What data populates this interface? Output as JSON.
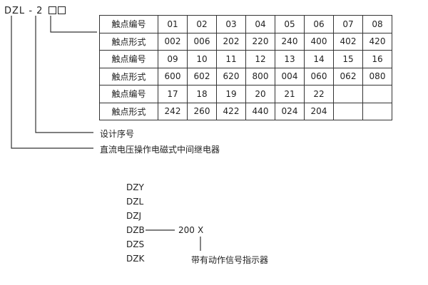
{
  "model": {
    "prefix": "DZL",
    "dash": "-",
    "series_digit": "2"
  },
  "table": {
    "rows": [
      {
        "label": "触点编号",
        "cells": [
          "01",
          "02",
          "03",
          "04",
          "05",
          "06",
          "07",
          "08"
        ]
      },
      {
        "label": "触点形式",
        "cells": [
          "002",
          "006",
          "202",
          "220",
          "240",
          "400",
          "402",
          "420"
        ]
      },
      {
        "label": "触点编号",
        "cells": [
          "09",
          "10",
          "11",
          "12",
          "13",
          "14",
          "15",
          "16"
        ]
      },
      {
        "label": "触点形式",
        "cells": [
          "600",
          "602",
          "620",
          "800",
          "004",
          "060",
          "062",
          "080"
        ]
      },
      {
        "label": "触点编号",
        "cells": [
          "17",
          "18",
          "19",
          "20",
          "21",
          "22",
          "",
          ""
        ]
      },
      {
        "label": "触点形式",
        "cells": [
          "242",
          "260",
          "422",
          "440",
          "024",
          "204",
          "",
          ""
        ]
      }
    ]
  },
  "labels": {
    "design_number": "设计序号",
    "relay_type": "直流电压操作电磁式中间继电器"
  },
  "series": {
    "models": [
      "DZY",
      "DZL",
      "DZJ",
      "DZB",
      "DZS",
      "DZK"
    ],
    "suffix_number": "200",
    "suffix_letter": "X",
    "suffix_note": "带有动作信号指示器"
  }
}
